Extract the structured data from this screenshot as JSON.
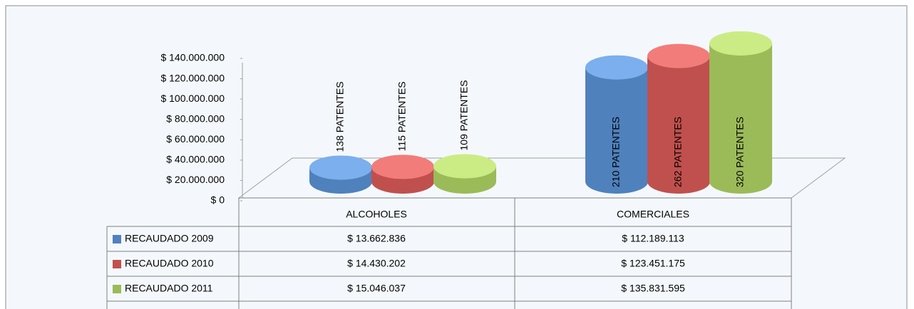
{
  "chart_data": {
    "type": "bar",
    "categories": [
      "ALCOHOLES",
      "COMERCIALES"
    ],
    "series": [
      {
        "name": "RECAUDADO 2009",
        "color": "#4f81bd",
        "values": [
          13662836,
          112189113
        ],
        "value_labels": [
          "$ 13.662.836",
          "$ 112.189.113"
        ],
        "labels": [
          "138 PATENTES",
          "210 PATENTES"
        ]
      },
      {
        "name": "RECAUDADO 2010",
        "color": "#c0504d",
        "values": [
          14430202,
          123451175
        ],
        "value_labels": [
          "$ 14.430.202",
          "$ 123.451.175"
        ],
        "labels": [
          "115 PATENTES",
          "262 PATENTES"
        ]
      },
      {
        "name": "RECAUDADO 2011",
        "color": "#9bbb59",
        "values": [
          15046037,
          135831595
        ],
        "value_labels": [
          "$ 15.046.037",
          "$ 135.831.595"
        ],
        "labels": [
          "109 PATENTES",
          "320 PATENTES"
        ]
      }
    ],
    "ylim": [
      0,
      140000000
    ],
    "yticks": [
      {
        "value": 0,
        "label": "$ 0"
      },
      {
        "value": 20000000,
        "label": "$ 20.000.000"
      },
      {
        "value": 40000000,
        "label": "$ 40.000.000"
      },
      {
        "value": 60000000,
        "label": "$ 60.000.000"
      },
      {
        "value": 80000000,
        "label": "$ 80.000.000"
      },
      {
        "value": 100000000,
        "label": "$ 100.000.000"
      },
      {
        "value": 120000000,
        "label": "$ 120.000.000"
      },
      {
        "value": 140000000,
        "label": "$ 140.000.000"
      }
    ]
  }
}
